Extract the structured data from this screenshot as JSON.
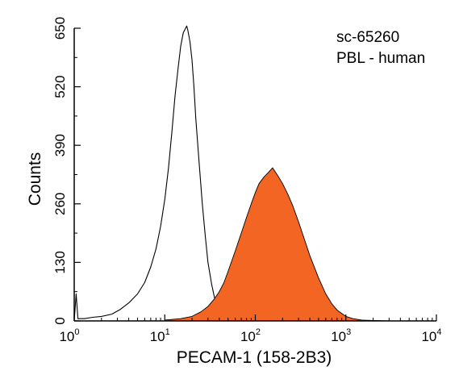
{
  "chart_data": {
    "type": "area",
    "title": "",
    "xlabel": "PECAM-1 (158-2B3)",
    "ylabel": "Counts",
    "x_scale": "log",
    "xlim": [
      1,
      10000
    ],
    "ylim": [
      0,
      650
    ],
    "x_ticks": [
      {
        "base": "10",
        "exp": "0"
      },
      {
        "base": "10",
        "exp": "1"
      },
      {
        "base": "10",
        "exp": "2"
      },
      {
        "base": "10",
        "exp": "3"
      },
      {
        "base": "10",
        "exp": "4"
      }
    ],
    "x_tick_values": [
      1,
      10,
      100,
      1000,
      10000
    ],
    "y_ticks": [
      "0",
      "130",
      "260",
      "390",
      "520",
      "650"
    ],
    "y_tick_values": [
      0,
      130,
      260,
      390,
      520,
      650
    ],
    "annotations": [
      "sc-65260",
      "PBL - human"
    ],
    "grid": false,
    "series": [
      {
        "style": "outline",
        "color": "#000000",
        "x": [
          1.0,
          1.05,
          1.1,
          1.3,
          1.6,
          2.0,
          2.6,
          3.2,
          4.0,
          5.0,
          6.0,
          7.0,
          8.0,
          9.0,
          10.0,
          11.0,
          12.0,
          13.0,
          14.0,
          15.0,
          16.0,
          17.0,
          17.5,
          18.0,
          19.0,
          20.0,
          21.0,
          22.0,
          24.0,
          26.0,
          28.0,
          30.0,
          33.0,
          36.0,
          40.0,
          45.0,
          50.0,
          56.0,
          63.0,
          70.0,
          80.0,
          100.0
        ],
        "y": [
          0,
          60,
          5,
          5,
          8,
          10,
          15,
          25,
          40,
          60,
          85,
          120,
          160,
          210,
          270,
          340,
          420,
          500,
          560,
          610,
          640,
          650,
          655,
          645,
          620,
          580,
          520,
          450,
          350,
          260,
          190,
          130,
          80,
          45,
          25,
          12,
          6,
          3,
          2,
          1,
          0,
          0
        ]
      },
      {
        "style": "filled",
        "color": "#f26522",
        "x": [
          10.0,
          15.0,
          20.0,
          25.0,
          30.0,
          35.0,
          40.0,
          45.0,
          50.0,
          60.0,
          70.0,
          80.0,
          90.0,
          100.0,
          110.0,
          125.0,
          140.0,
          155.0,
          165.0,
          180.0,
          200.0,
          230.0,
          260.0,
          300.0,
          350.0,
          400.0,
          500.0,
          600.0,
          700.0,
          800.0,
          1000.0,
          1200.0,
          1500.0,
          2000.0,
          3000.0
        ],
        "y": [
          2,
          5,
          10,
          20,
          32,
          48,
          65,
          85,
          110,
          155,
          195,
          230,
          260,
          285,
          305,
          320,
          330,
          340,
          332,
          320,
          305,
          280,
          255,
          220,
          180,
          145,
          95,
          60,
          38,
          24,
          10,
          5,
          2,
          1,
          0
        ]
      }
    ]
  }
}
